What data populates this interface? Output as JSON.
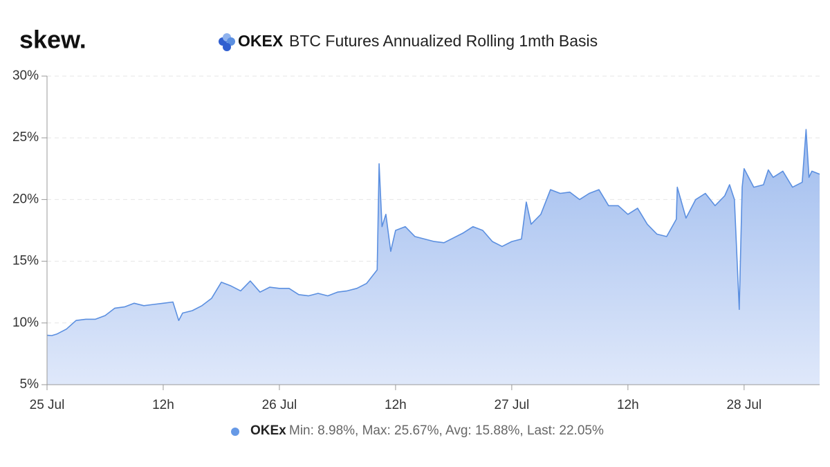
{
  "brand": "skew.",
  "chart_data": {
    "type": "area",
    "title_logo": "OKEX",
    "title": "BTC Futures Annualized Rolling 1mth Basis",
    "x": [
      0,
      0.5,
      1,
      2,
      3,
      4,
      5,
      6,
      7,
      8,
      9,
      10,
      11,
      12,
      13,
      13.6,
      14,
      15,
      16,
      17,
      18,
      19,
      20,
      21,
      22,
      23,
      24,
      25,
      26,
      27,
      28,
      29,
      30,
      31,
      32,
      33,
      34,
      34.1,
      34.3,
      34.6,
      35,
      35.5,
      36,
      37,
      38,
      39,
      40,
      41,
      42,
      43,
      44,
      45,
      46,
      47,
      48,
      49,
      49.5,
      50,
      51,
      52,
      53,
      54,
      55,
      56,
      57,
      58,
      59,
      60,
      61,
      62,
      63,
      64,
      65,
      65.1,
      66,
      67,
      68,
      69,
      70,
      70.5,
      71,
      71.5,
      71.8,
      72,
      73,
      74,
      74.5,
      75,
      76,
      77,
      78,
      78.4,
      78.7,
      79,
      79.8
    ],
    "series": [
      {
        "name": "OKEx",
        "color": "#5b8fe0",
        "values": [
          9.0,
          8.98,
          9.1,
          9.5,
          10.2,
          10.3,
          10.3,
          10.6,
          11.2,
          11.3,
          11.6,
          11.4,
          11.5,
          11.6,
          11.7,
          10.2,
          10.8,
          11.0,
          11.4,
          12.0,
          13.3,
          13.0,
          12.6,
          13.4,
          12.5,
          12.9,
          12.8,
          12.8,
          12.3,
          12.2,
          12.4,
          12.2,
          12.5,
          12.6,
          12.8,
          13.2,
          14.2,
          14.3,
          22.9,
          17.8,
          18.8,
          15.8,
          17.5,
          17.8,
          17.0,
          16.8,
          16.6,
          16.5,
          16.9,
          17.3,
          17.8,
          17.5,
          16.6,
          16.2,
          16.6,
          16.8,
          19.8,
          18.0,
          18.8,
          20.8,
          20.5,
          20.6,
          20.0,
          20.5,
          20.8,
          19.5,
          19.5,
          18.8,
          19.3,
          18.0,
          17.2,
          17.0,
          18.4,
          21.0,
          18.5,
          20.0,
          20.5,
          19.5,
          20.3,
          21.2,
          20.0,
          11.1,
          21.0,
          22.5,
          21.0,
          21.2,
          22.4,
          21.8,
          22.3,
          21.0,
          21.4,
          25.67,
          21.8,
          22.3,
          22.05
        ]
      }
    ],
    "legend_stats": "Min: 8.98%, Max: 25.67%, Avg: 15.88%, Last: 22.05%",
    "xlim": [
      0,
      79.8
    ],
    "xticks": [
      {
        "value": 0,
        "label": "25 Jul"
      },
      {
        "value": 12,
        "label": "12h"
      },
      {
        "value": 24,
        "label": "26 Jul"
      },
      {
        "value": 36,
        "label": "12h"
      },
      {
        "value": 48,
        "label": "27 Jul"
      },
      {
        "value": 60,
        "label": "12h"
      },
      {
        "value": 72,
        "label": "28 Jul"
      }
    ],
    "ylim": [
      5,
      30
    ],
    "yticks": [
      {
        "value": 5,
        "label": "5%"
      },
      {
        "value": 10,
        "label": "10%"
      },
      {
        "value": 15,
        "label": "15%"
      },
      {
        "value": 20,
        "label": "20%"
      },
      {
        "value": 25,
        "label": "25%"
      },
      {
        "value": 30,
        "label": "30%"
      }
    ],
    "grid": true
  }
}
